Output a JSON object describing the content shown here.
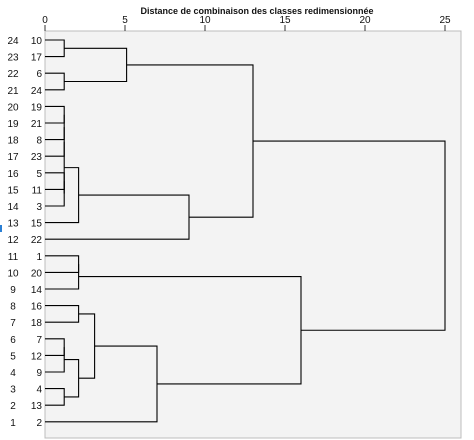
{
  "chart_data": {
    "type": "dendrogram",
    "title": "Distance de combinaison des classes redimensionnée",
    "x_ticks": [
      0,
      5,
      10,
      15,
      20,
      25
    ],
    "xlim": [
      0,
      25
    ],
    "grid": false,
    "row_index_labels": [
      "24",
      "23",
      "22",
      "21",
      "20",
      "19",
      "18",
      "17",
      "16",
      "15",
      "14",
      "13",
      "12",
      "11",
      "10",
      "9",
      "8",
      "7",
      "6",
      "5",
      "4",
      "3",
      "2",
      "1"
    ],
    "leaves": [
      "10",
      "17",
      "6",
      "24",
      "19",
      "21",
      "8",
      "23",
      "5",
      "11",
      "3",
      "15",
      "22",
      "1",
      "20",
      "14",
      "16",
      "18",
      "7",
      "12",
      "9",
      "4",
      "13",
      "2"
    ],
    "merges": [
      {
        "a": "L0",
        "b": "L1",
        "height": 1.2
      },
      {
        "a": "L2",
        "b": "L3",
        "height": 1.2
      },
      {
        "a": "M0",
        "b": "M1",
        "height": 5.1
      },
      {
        "a": "L4",
        "b": "L5",
        "height": 1.2
      },
      {
        "a": "M3",
        "b": "L6",
        "height": 1.2
      },
      {
        "a": "M4",
        "b": "L7",
        "height": 1.2
      },
      {
        "a": "L8",
        "b": "L9",
        "height": 1.2
      },
      {
        "a": "M6",
        "b": "L10",
        "height": 1.2
      },
      {
        "a": "M5",
        "b": "M7",
        "height": 1.2
      },
      {
        "a": "M8",
        "b": "L11",
        "height": 2.1
      },
      {
        "a": "M9",
        "b": "L12",
        "height": 9.0
      },
      {
        "a": "M2",
        "b": "M10",
        "height": 13.0
      },
      {
        "a": "L13",
        "b": "L14",
        "height": 2.1
      },
      {
        "a": "M12",
        "b": "L15",
        "height": 2.1
      },
      {
        "a": "L16",
        "b": "L17",
        "height": 2.1
      },
      {
        "a": "L18",
        "b": "L19",
        "height": 1.2
      },
      {
        "a": "M15",
        "b": "L20",
        "height": 1.2
      },
      {
        "a": "L21",
        "b": "L22",
        "height": 1.2
      },
      {
        "a": "M16",
        "b": "M17",
        "height": 2.1
      },
      {
        "a": "M14",
        "b": "M18",
        "height": 3.1
      },
      {
        "a": "M19",
        "b": "L23",
        "height": 7.0
      },
      {
        "a": "M13",
        "b": "M20",
        "height": 16.0
      },
      {
        "a": "M11",
        "b": "M21",
        "height": 25.0
      }
    ]
  }
}
